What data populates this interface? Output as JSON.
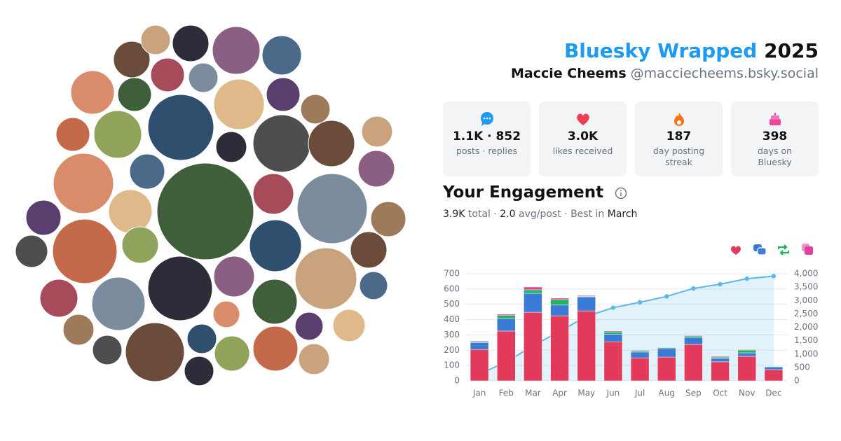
{
  "header": {
    "title": "Bluesky Wrapped",
    "year": "2025",
    "name": "Maccie Cheems",
    "handle": "@macciecheems.bsky.social"
  },
  "stats": [
    {
      "value": "1.1K · 852",
      "label": "posts · replies"
    },
    {
      "value": "3.0K",
      "label": "likes received"
    },
    {
      "value": "187",
      "label": "day posting streak"
    },
    {
      "value": "398",
      "label": "days on Bluesky"
    }
  ],
  "engagement": {
    "title": "Your Engagement",
    "separator": "·",
    "total_value": "3.9K",
    "total_label": "total",
    "avg_value": "2.0",
    "avg_label": "avg/post",
    "best_label": "Best in",
    "best_value": "March"
  },
  "chart_data": {
    "type": "bar",
    "stacked": true,
    "categories": [
      "Jan",
      "Feb",
      "Mar",
      "Apr",
      "May",
      "Jun",
      "Jul",
      "Aug",
      "Sep",
      "Oct",
      "Nov",
      "Dec"
    ],
    "series": [
      {
        "color": "#e23a5a",
        "values": [
          205,
          325,
          448,
          425,
          457,
          255,
          150,
          155,
          238,
          124,
          160,
          73
        ]
      },
      {
        "color": "#3b7bd6",
        "values": [
          45,
          82,
          124,
          70,
          92,
          50,
          38,
          55,
          46,
          22,
          23,
          18
        ]
      },
      {
        "color": "#22b35e",
        "values": [
          5,
          20,
          23,
          36,
          4,
          14,
          8,
          7,
          9,
          9,
          18,
          3
        ]
      },
      {
        "color": "#e040a0",
        "values": [
          5,
          8,
          18,
          9,
          5,
          6,
          4,
          3,
          4,
          5,
          4,
          2
        ]
      },
      {
        "type": "line",
        "axis": "y2",
        "color": "#5bb8e8",
        "values": [
          260,
          695,
          1308,
          1848,
          2406,
          2731,
          2932,
          3152,
          3449,
          3609,
          3814,
          3909
        ]
      }
    ],
    "ylim": [
      0,
      700
    ],
    "yticks": [
      0,
      100,
      200,
      300,
      400,
      500,
      600,
      700
    ],
    "y2lim": [
      0,
      4000
    ],
    "y2ticks": [
      0,
      500,
      {
        "value": 1000,
        "label": "1,000"
      },
      {
        "value": 1500,
        "label": "1,500"
      },
      {
        "value": 2000,
        "label": "2,000"
      },
      {
        "value": 2500,
        "label": "2,500"
      },
      {
        "value": 3000,
        "label": "3,000"
      },
      {
        "value": 3500,
        "label": "3,500"
      },
      {
        "value": 4000,
        "label": "4,000"
      }
    ],
    "grid": true
  }
}
